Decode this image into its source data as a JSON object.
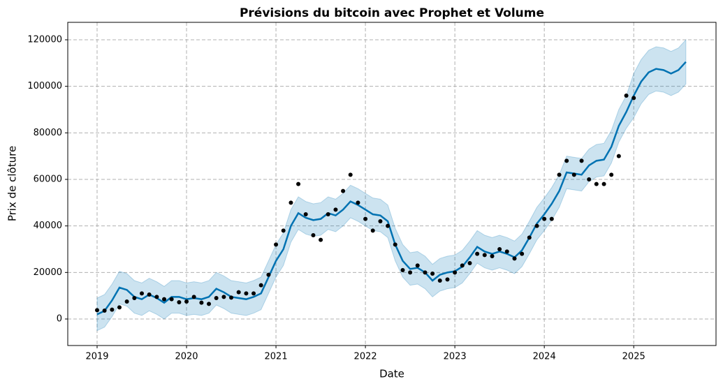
{
  "chart_data": {
    "type": "prophet",
    "title": "Prévisions du bitcoin avec Prophet et Volume",
    "xlabel": "Date",
    "ylabel": "Prix de clôture",
    "xlim": [
      2018.672,
      2025.92
    ],
    "ylim": [
      -11400,
      127500
    ],
    "xticks": [
      2019,
      2020,
      2021,
      2022,
      2023,
      2024,
      2025
    ],
    "yticks": [
      0,
      20000,
      40000,
      60000,
      80000,
      100000,
      120000
    ],
    "grid": true,
    "x": [
      2019,
      2019.083,
      2019.167,
      2019.25,
      2019.333,
      2019.417,
      2019.5,
      2019.583,
      2019.667,
      2019.75,
      2019.833,
      2019.917,
      2020,
      2020.083,
      2020.167,
      2020.25,
      2020.333,
      2020.417,
      2020.5,
      2020.583,
      2020.667,
      2020.75,
      2020.833,
      2020.917,
      2021,
      2021.083,
      2021.167,
      2021.25,
      2021.333,
      2021.417,
      2021.5,
      2021.583,
      2021.667,
      2021.75,
      2021.833,
      2021.917,
      2022,
      2022.083,
      2022.167,
      2022.25,
      2022.333,
      2022.417,
      2022.5,
      2022.583,
      2022.667,
      2022.75,
      2022.833,
      2022.917,
      2023,
      2023.083,
      2023.167,
      2023.25,
      2023.333,
      2023.417,
      2023.5,
      2023.583,
      2023.667,
      2023.75,
      2023.833,
      2023.917,
      2024,
      2024.083,
      2024.167,
      2024.25,
      2024.333,
      2024.417,
      2024.5,
      2024.583,
      2024.667,
      2024.75,
      2024.833,
      2024.917,
      2025,
      2025.083,
      2025.167,
      2025.25,
      2025.333,
      2025.417,
      2025.5,
      2025.583
    ],
    "series": [
      {
        "type": "band",
        "color": "#0072b2",
        "upper": [
          9000,
          10500,
          15000,
          20500,
          19500,
          16500,
          15500,
          17500,
          16000,
          14000,
          16500,
          16500,
          15500,
          16000,
          15500,
          16500,
          20000,
          18500,
          16500,
          16000,
          15500,
          16500,
          18000,
          25000,
          32000,
          37000,
          47000,
          52500,
          50500,
          49500,
          50000,
          52500,
          51500,
          54000,
          57500,
          56000,
          54000,
          52000,
          51500,
          49000,
          39000,
          32000,
          28500,
          29000,
          27000,
          23500,
          26000,
          27000,
          27500,
          29500,
          33500,
          38000,
          36000,
          35000,
          36000,
          35000,
          33500,
          36500,
          42000,
          48000,
          52000,
          56500,
          62000,
          70000,
          69500,
          69000,
          73000,
          75000,
          75500,
          81000,
          90000,
          96000,
          105500,
          111500,
          115500,
          117000,
          116500,
          115000,
          116500,
          120000
        ],
        "lower": [
          -5000,
          -3500,
          1000,
          6500,
          5500,
          2500,
          1500,
          3500,
          2000,
          0,
          2500,
          2500,
          1500,
          2000,
          1500,
          2500,
          6000,
          4500,
          2500,
          2000,
          1500,
          2500,
          4000,
          11000,
          18000,
          23000,
          33000,
          38500,
          36500,
          35500,
          36000,
          38500,
          37500,
          40000,
          43500,
          42000,
          40000,
          38000,
          37500,
          35000,
          25000,
          18000,
          14500,
          15000,
          13000,
          9500,
          12000,
          13000,
          13500,
          15500,
          19500,
          24000,
          22000,
          21000,
          22000,
          21000,
          19500,
          22500,
          28000,
          34000,
          38000,
          42500,
          48000,
          56000,
          55500,
          55000,
          59000,
          61000,
          61500,
          67000,
          76000,
          82000,
          86500,
          92500,
          96500,
          98000,
          97500,
          96000,
          97500,
          101000
        ]
      },
      {
        "type": "line",
        "color": "#0072b2",
        "values": [
          2000,
          3500,
          8000,
          13500,
          12500,
          9500,
          8500,
          10500,
          9000,
          7000,
          9500,
          9500,
          8500,
          9000,
          8500,
          9500,
          13000,
          11500,
          9500,
          9000,
          8500,
          9500,
          11000,
          18000,
          25000,
          30000,
          40000,
          45500,
          43500,
          42500,
          43000,
          45500,
          44500,
          47000,
          50500,
          49000,
          47000,
          45000,
          44500,
          42000,
          32000,
          25000,
          21500,
          22000,
          20000,
          16500,
          19000,
          20000,
          20500,
          22500,
          26500,
          31000,
          29000,
          28000,
          29000,
          28000,
          26500,
          29500,
          35000,
          41000,
          45000,
          49500,
          55000,
          63000,
          62500,
          62000,
          66000,
          68000,
          68500,
          74000,
          83000,
          89000,
          96000,
          102000,
          106000,
          107500,
          107000,
          105500,
          107000,
          110500
        ]
      },
      {
        "type": "scatter",
        "color": "#000000",
        "values": [
          3800,
          3600,
          4000,
          5000,
          7500,
          9000,
          11000,
          10500,
          9500,
          8500,
          8500,
          7200,
          7500,
          9500,
          7000,
          6500,
          9000,
          9500,
          9200,
          11500,
          11000,
          11000,
          14500,
          19000,
          32000,
          38000,
          50000,
          58000,
          45000,
          36000,
          34000,
          45000,
          47000,
          55000,
          62000,
          50000,
          43000,
          38000,
          42000,
          40000,
          32000,
          21000,
          20000,
          23000,
          20000,
          19500,
          16500,
          17000,
          20000,
          23000,
          24000,
          28000,
          27500,
          27000,
          30000,
          29000,
          26000,
          28000,
          35000,
          40000,
          43000,
          43000,
          62000,
          68000,
          62000,
          68000,
          60000,
          58000,
          58000,
          62000,
          70000,
          96000,
          95000,
          null,
          null,
          null,
          null,
          null,
          null,
          null
        ]
      }
    ]
  }
}
